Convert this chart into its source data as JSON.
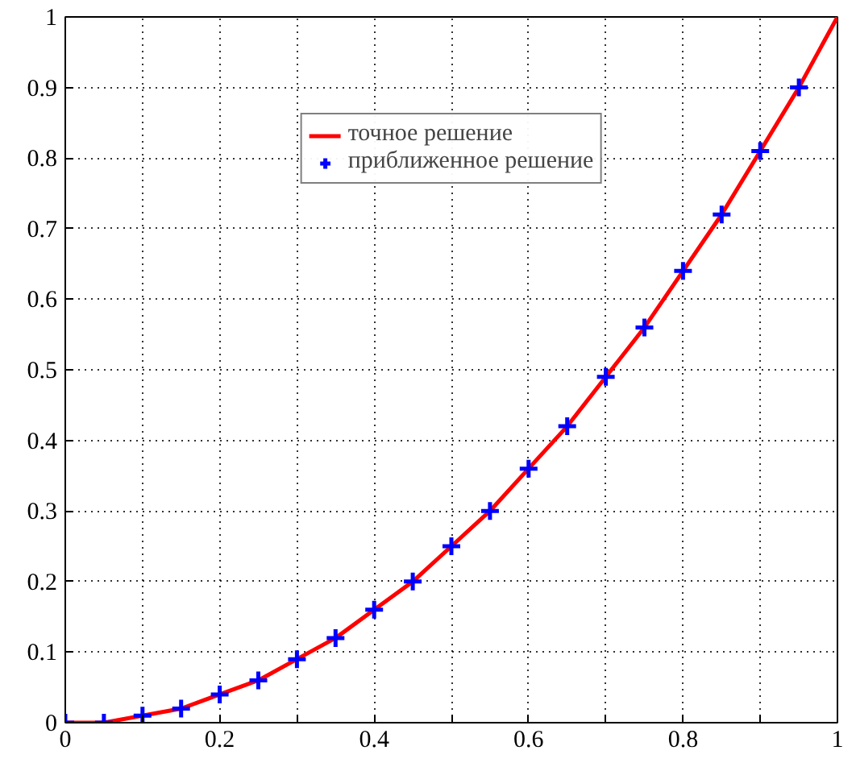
{
  "chart_data": {
    "type": "line",
    "x": [
      0,
      0.05,
      0.1,
      0.15,
      0.2,
      0.25,
      0.3,
      0.35,
      0.4,
      0.45,
      0.5,
      0.55,
      0.6,
      0.65,
      0.7,
      0.75,
      0.8,
      0.85,
      0.9,
      0.95,
      1
    ],
    "series": [
      {
        "name": "точное решение",
        "color": "#ff0000",
        "marker": "none",
        "line_style": "solid",
        "values": [
          0,
          0,
          0.01,
          0.02,
          0.04,
          0.06,
          0.09,
          0.12,
          0.16,
          0.2,
          0.25,
          0.3,
          0.36,
          0.42,
          0.49,
          0.56,
          0.64,
          0.72,
          0.81,
          0.9,
          1
        ]
      },
      {
        "name": "приближенное решение",
        "type": "scatter",
        "color": "#0000ff",
        "marker": "cross",
        "x": [
          0,
          0.05,
          0.1,
          0.15,
          0.2,
          0.25,
          0.3,
          0.35,
          0.4,
          0.45,
          0.5,
          0.55,
          0.6,
          0.65,
          0.7,
          0.75,
          0.8,
          0.85,
          0.9,
          0.95
        ],
        "values": [
          0,
          0,
          0.01,
          0.02,
          0.04,
          0.06,
          0.09,
          0.12,
          0.16,
          0.2,
          0.25,
          0.3,
          0.36,
          0.42,
          0.49,
          0.56,
          0.64,
          0.72,
          0.81,
          0.9
        ]
      }
    ],
    "xlim": [
      0,
      1
    ],
    "ylim": [
      0,
      1
    ],
    "xticks": [
      0,
      {
        "value": 0.1,
        "label": null
      },
      0.2,
      {
        "value": 0.3,
        "label": null
      },
      0.4,
      {
        "value": 0.5,
        "label": null
      },
      0.6,
      {
        "value": 0.7,
        "label": null
      },
      0.8,
      {
        "value": 0.9,
        "label": null
      },
      1
    ],
    "yticks": [
      0,
      0.1,
      0.2,
      0.3,
      0.4,
      0.5,
      0.6,
      0.7,
      0.8,
      0.9,
      1
    ],
    "grid": true,
    "legend": "top"
  }
}
